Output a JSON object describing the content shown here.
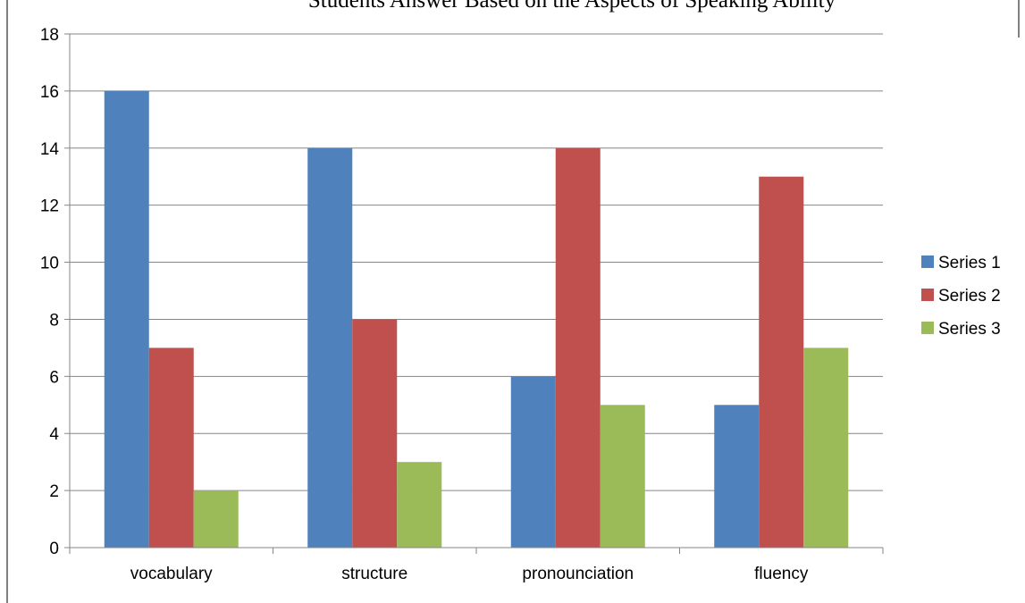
{
  "chart_data": {
    "type": "bar",
    "title": "Students Answer Based on the Aspects of Speaking Ability",
    "categories": [
      "vocabulary",
      "structure",
      "pronounciation",
      "fluency"
    ],
    "series": [
      {
        "name": "Series 1",
        "values": [
          16,
          14,
          6,
          5
        ],
        "color": "#4f81bd"
      },
      {
        "name": "Series 2",
        "values": [
          7,
          8,
          14,
          13
        ],
        "color": "#c0504d"
      },
      {
        "name": "Series 3",
        "values": [
          2,
          3,
          5,
          7
        ],
        "color": "#9bbb59"
      }
    ],
    "xlabel": "",
    "ylabel": "",
    "ylim": [
      0,
      18
    ],
    "yticks": [
      0,
      2,
      4,
      6,
      8,
      10,
      12,
      14,
      16,
      18
    ],
    "grid": true,
    "legend_position": "right"
  }
}
